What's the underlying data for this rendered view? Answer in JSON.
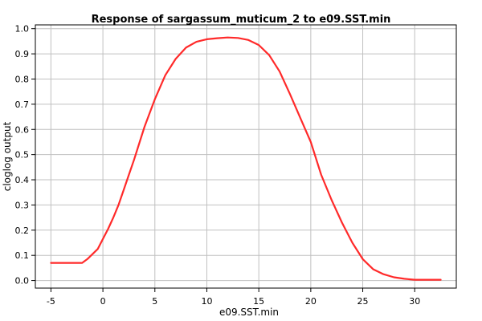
{
  "chart_data": {
    "type": "line",
    "title": "Response of sargassum_muticum_2 to e09.SST.min",
    "xlabel": "e09.SST.min",
    "ylabel": "cloglog output",
    "xlim": [
      -6.5,
      34
    ],
    "ylim": [
      -0.03,
      1.015
    ],
    "xticks": [
      -5,
      0,
      5,
      10,
      15,
      20,
      25,
      30
    ],
    "yticks": [
      0.0,
      0.1,
      0.2,
      0.3,
      0.4,
      0.5,
      0.6,
      0.7,
      0.8,
      0.9,
      1.0
    ],
    "xtick_labels": [
      "-5",
      "0",
      "5",
      "10",
      "15",
      "20",
      "25",
      "30"
    ],
    "ytick_labels": [
      "0.0",
      "0.1",
      "0.2",
      "0.3",
      "0.4",
      "0.5",
      "0.6",
      "0.7",
      "0.8",
      "0.9",
      "1.0"
    ],
    "grid": true,
    "series": [
      {
        "color": "#ff2a2a",
        "x": [
          -5,
          -2,
          -1.5,
          -0.5,
          0,
          0.5,
          1,
          1.5,
          2,
          2.5,
          3,
          3.5,
          4,
          5,
          6,
          7,
          8,
          9,
          10,
          11,
          12,
          13,
          14,
          15,
          16,
          17,
          18,
          19,
          20,
          21,
          22,
          23,
          24,
          25,
          26,
          27,
          28,
          29,
          30,
          31,
          32.5
        ],
        "y": [
          0.07,
          0.07,
          0.085,
          0.125,
          0.165,
          0.205,
          0.25,
          0.3,
          0.36,
          0.42,
          0.48,
          0.545,
          0.61,
          0.72,
          0.815,
          0.88,
          0.925,
          0.948,
          0.958,
          0.962,
          0.965,
          0.963,
          0.955,
          0.935,
          0.895,
          0.83,
          0.74,
          0.645,
          0.55,
          0.42,
          0.32,
          0.23,
          0.15,
          0.085,
          0.045,
          0.025,
          0.013,
          0.007,
          0.003,
          0.003,
          0.003
        ]
      }
    ]
  }
}
